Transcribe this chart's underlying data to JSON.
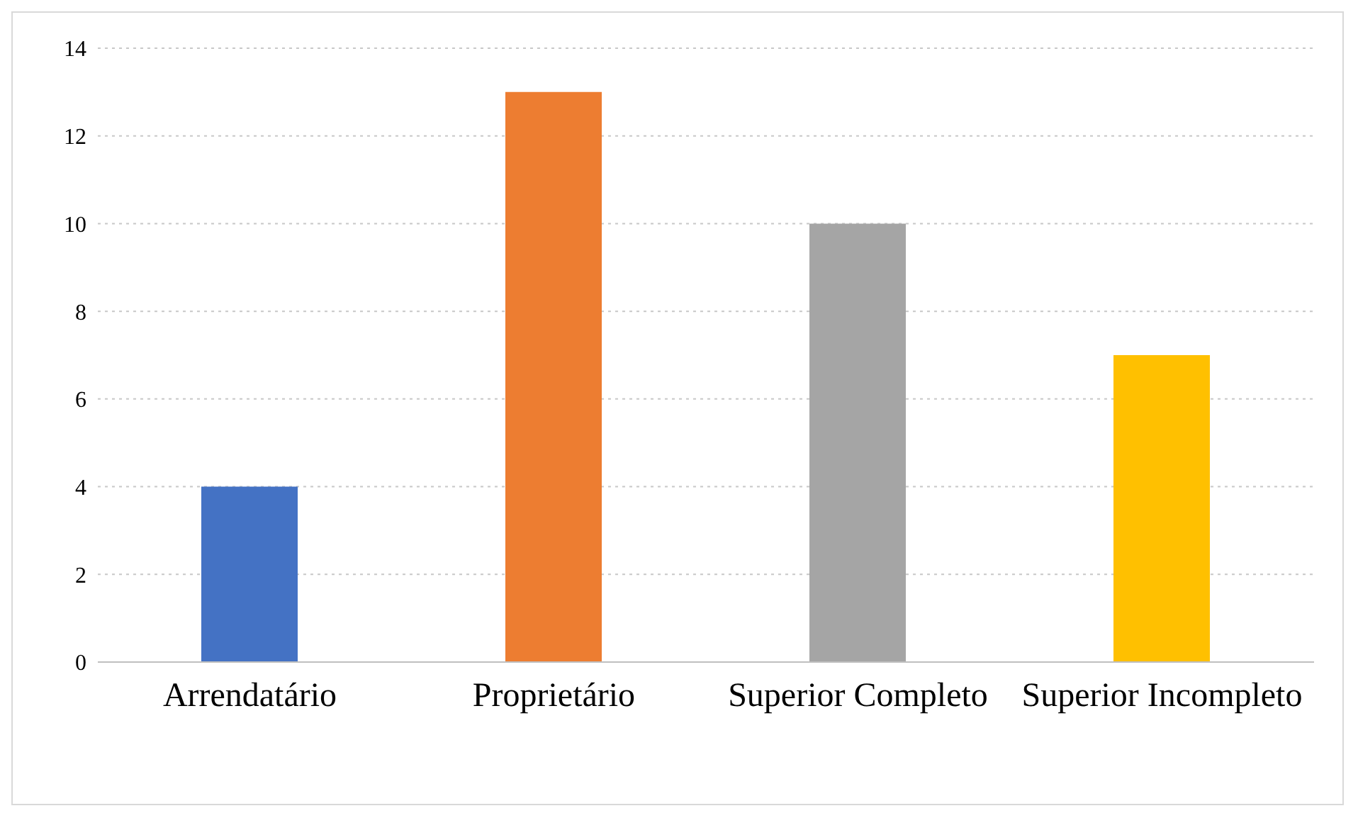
{
  "chart_data": {
    "type": "bar",
    "categories": [
      "Arrendatário",
      "Proprietário",
      "Superior Completo",
      "Superior Incompleto"
    ],
    "values": [
      4,
      13,
      10,
      7
    ],
    "colors": [
      "#4472c4",
      "#ed7d31",
      "#a5a5a5",
      "#ffc000"
    ],
    "ylim": [
      0,
      14
    ],
    "yticks": [
      0,
      2,
      4,
      6,
      8,
      10,
      12,
      14
    ],
    "grid": "y",
    "legend": false
  }
}
